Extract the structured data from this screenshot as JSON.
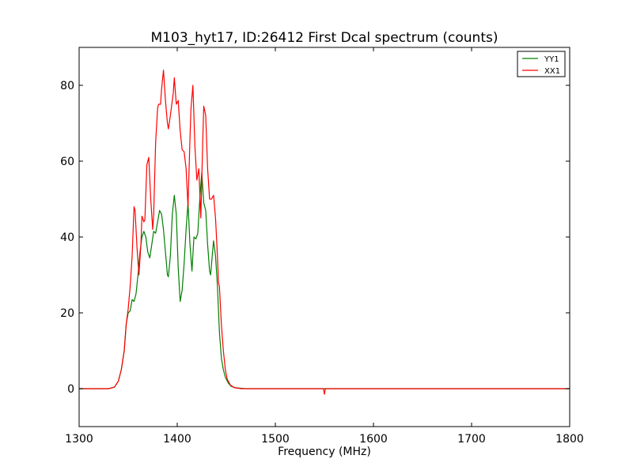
{
  "chart_data": {
    "type": "line",
    "title": "M103_hyt17, ID:26412 First Dcal spectrum (counts)",
    "xlabel": "Frequency (MHz)",
    "ylabel": "",
    "xlim": [
      1300,
      1800
    ],
    "ylim": [
      -10,
      90
    ],
    "xticks": [
      1300,
      1400,
      1500,
      1600,
      1700,
      1800
    ],
    "yticks": [
      0,
      20,
      40,
      60,
      80
    ],
    "xtick_labels": [
      "1300",
      "1400",
      "1500",
      "1600",
      "1700",
      "1800"
    ],
    "ytick_labels": [
      "0",
      "20",
      "40",
      "60",
      "80"
    ],
    "grid": false,
    "legend_position": "top-right",
    "series": [
      {
        "name": "YY1",
        "color": "#008000",
        "points": [
          [
            1300,
            0
          ],
          [
            1330,
            0
          ],
          [
            1336,
            0.4
          ],
          [
            1340,
            2
          ],
          [
            1343,
            5
          ],
          [
            1346,
            10
          ],
          [
            1348,
            17
          ],
          [
            1350,
            20
          ],
          [
            1352,
            20.5
          ],
          [
            1354,
            23.5
          ],
          [
            1356,
            23
          ],
          [
            1358,
            25
          ],
          [
            1360,
            30
          ],
          [
            1362,
            36
          ],
          [
            1364,
            40
          ],
          [
            1366,
            41.5
          ],
          [
            1368,
            40
          ],
          [
            1370,
            36
          ],
          [
            1372,
            34.5
          ],
          [
            1374,
            38
          ],
          [
            1376,
            41.5
          ],
          [
            1378,
            41
          ],
          [
            1380,
            44
          ],
          [
            1382,
            47
          ],
          [
            1384,
            46
          ],
          [
            1386,
            42
          ],
          [
            1388,
            36
          ],
          [
            1390,
            30
          ],
          [
            1391,
            29.5
          ],
          [
            1393,
            35
          ],
          [
            1395,
            46
          ],
          [
            1397,
            51
          ],
          [
            1399,
            46
          ],
          [
            1401,
            32
          ],
          [
            1403,
            23
          ],
          [
            1405,
            26
          ],
          [
            1407,
            33
          ],
          [
            1409,
            42
          ],
          [
            1411,
            49
          ],
          [
            1413,
            38
          ],
          [
            1415,
            31
          ],
          [
            1417,
            40
          ],
          [
            1419,
            39.5
          ],
          [
            1421,
            41
          ],
          [
            1423,
            50
          ],
          [
            1425,
            57
          ],
          [
            1427,
            49
          ],
          [
            1429,
            47
          ],
          [
            1431,
            38
          ],
          [
            1433,
            31
          ],
          [
            1434,
            30
          ],
          [
            1436,
            36
          ],
          [
            1437,
            39
          ],
          [
            1439,
            35
          ],
          [
            1441,
            27
          ],
          [
            1443,
            15
          ],
          [
            1445,
            8
          ],
          [
            1447,
            5
          ],
          [
            1449,
            3
          ],
          [
            1452,
            1.5
          ],
          [
            1455,
            0.6
          ],
          [
            1460,
            0.2
          ],
          [
            1470,
            0
          ],
          [
            1550,
            0
          ],
          [
            1800,
            0
          ]
        ]
      },
      {
        "name": "XX1",
        "color": "#ff0000",
        "points": [
          [
            1300,
            0
          ],
          [
            1330,
            0
          ],
          [
            1336,
            0.4
          ],
          [
            1340,
            2
          ],
          [
            1343,
            5
          ],
          [
            1346,
            10
          ],
          [
            1348,
            17
          ],
          [
            1350,
            21
          ],
          [
            1352,
            27
          ],
          [
            1354,
            35
          ],
          [
            1356,
            48
          ],
          [
            1357,
            47
          ],
          [
            1359,
            37
          ],
          [
            1361,
            30
          ],
          [
            1363,
            38
          ],
          [
            1364,
            45.5
          ],
          [
            1366,
            44
          ],
          [
            1367,
            44.5
          ],
          [
            1369,
            59
          ],
          [
            1371,
            61
          ],
          [
            1373,
            50
          ],
          [
            1375,
            42
          ],
          [
            1376,
            46
          ],
          [
            1378,
            65
          ],
          [
            1380,
            74
          ],
          [
            1381,
            75
          ],
          [
            1383,
            75
          ],
          [
            1384,
            79
          ],
          [
            1386,
            84
          ],
          [
            1388,
            76
          ],
          [
            1390,
            70
          ],
          [
            1391,
            68.5
          ],
          [
            1393,
            72
          ],
          [
            1396,
            78
          ],
          [
            1397,
            82
          ],
          [
            1399,
            75
          ],
          [
            1401,
            76
          ],
          [
            1403,
            68
          ],
          [
            1405,
            63
          ],
          [
            1407,
            62.5
          ],
          [
            1409,
            58
          ],
          [
            1411,
            48
          ],
          [
            1413,
            66
          ],
          [
            1414,
            74
          ],
          [
            1416,
            80
          ],
          [
            1418,
            64
          ],
          [
            1420,
            55
          ],
          [
            1422,
            58
          ],
          [
            1424,
            45
          ],
          [
            1426,
            65
          ],
          [
            1427,
            74.5
          ],
          [
            1429,
            72
          ],
          [
            1431,
            58
          ],
          [
            1433,
            50
          ],
          [
            1435,
            50
          ],
          [
            1437,
            51
          ],
          [
            1439,
            45
          ],
          [
            1441,
            35
          ],
          [
            1442,
            28
          ],
          [
            1443,
            27
          ],
          [
            1445,
            17
          ],
          [
            1447,
            10
          ],
          [
            1449,
            5
          ],
          [
            1451,
            2.5
          ],
          [
            1454,
            1
          ],
          [
            1458,
            0.3
          ],
          [
            1465,
            0
          ],
          [
            1549,
            0
          ],
          [
            1550,
            -1.5
          ],
          [
            1551,
            0
          ],
          [
            1800,
            0
          ]
        ]
      }
    ]
  }
}
